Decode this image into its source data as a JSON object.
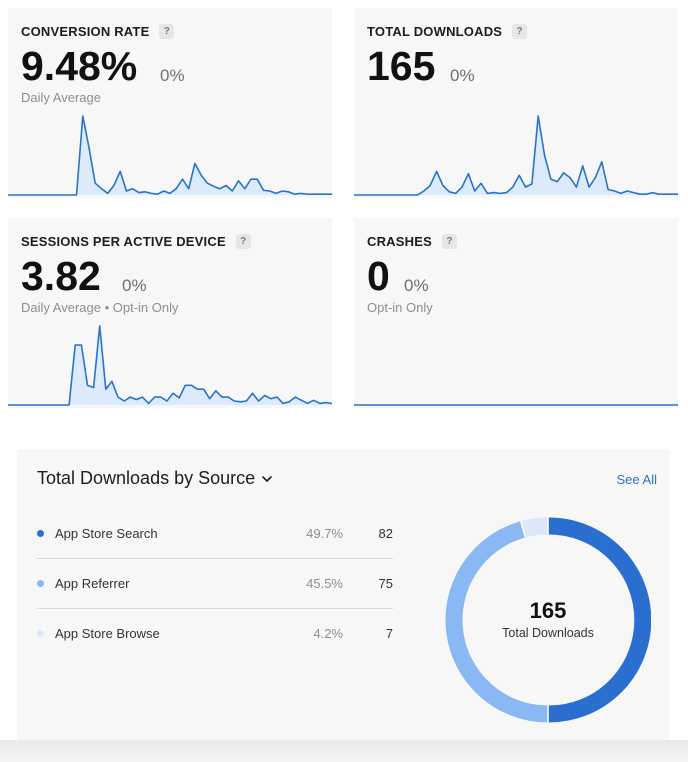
{
  "metrics": [
    {
      "title": "CONVERSION RATE",
      "help": "?",
      "value": "9.48%",
      "change": "0%",
      "subtitle": "Daily Average",
      "sparkline": [
        0,
        0,
        0,
        0,
        0,
        0,
        0,
        0,
        0,
        0,
        0,
        0,
        1.0,
        0.6,
        0.15,
        0.08,
        0.02,
        0.12,
        0.3,
        0.05,
        0.08,
        0.03,
        0.04,
        0.02,
        0.01,
        0.05,
        0.02,
        0.08,
        0.2,
        0.08,
        0.4,
        0.25,
        0.15,
        0.11,
        0.08,
        0.12,
        0.05,
        0.18,
        0.08,
        0.2,
        0.2,
        0.06,
        0.05,
        0.02,
        0.05,
        0.04,
        0.01,
        0.02,
        0.01,
        0.01,
        0.01,
        0.01,
        0.01
      ]
    },
    {
      "title": "TOTAL DOWNLOADS",
      "help": "?",
      "value": "165",
      "change": "0%",
      "subtitle": "",
      "sparkline": [
        0,
        0,
        0,
        0,
        0,
        0,
        0,
        0,
        0,
        0,
        0,
        0.05,
        0.12,
        0.3,
        0.12,
        0.04,
        0.02,
        0.1,
        0.27,
        0.05,
        0.15,
        0.02,
        0.03,
        0.02,
        0.03,
        0.1,
        0.25,
        0.1,
        0.14,
        1.0,
        0.5,
        0.2,
        0.17,
        0.28,
        0.22,
        0.1,
        0.37,
        0.1,
        0.22,
        0.42,
        0.07,
        0.05,
        0.02,
        0.05,
        0.03,
        0.01,
        0.01,
        0.03,
        0.01,
        0.01,
        0.01,
        0.01
      ]
    },
    {
      "title": "SESSIONS PER ACTIVE DEVICE",
      "help": "?",
      "value": "3.82",
      "change": "0%",
      "subtitle": "Daily Average • Opt-in Only",
      "sparkline": [
        0,
        0,
        0,
        0,
        0,
        0,
        0,
        0,
        0,
        0,
        0,
        0.76,
        0.76,
        0.25,
        0.22,
        1.0,
        0.2,
        0.3,
        0.1,
        0.05,
        0.1,
        0.07,
        0.1,
        0.02,
        0.1,
        0.1,
        0.05,
        0.15,
        0.09,
        0.25,
        0.25,
        0.2,
        0.2,
        0.08,
        0.18,
        0.1,
        0.1,
        0.05,
        0.04,
        0.05,
        0.15,
        0.05,
        0.12,
        0.08,
        0.1,
        0.02,
        0.04,
        0.1,
        0.06,
        0.02,
        0.06,
        0.02,
        0.03,
        0.02
      ]
    },
    {
      "title": "CRASHES",
      "help": "?",
      "value": "0",
      "change": "0%",
      "subtitle": "Opt-in Only",
      "sparkline": [
        0,
        0,
        0,
        0,
        0,
        0,
        0,
        0,
        0,
        0,
        0,
        0,
        0,
        0,
        0,
        0,
        0,
        0,
        0,
        0,
        0,
        0,
        0,
        0,
        0,
        0,
        0,
        0,
        0,
        0,
        0,
        0,
        0,
        0,
        0,
        0,
        0,
        0,
        0,
        0,
        0,
        0,
        0,
        0,
        0,
        0,
        0,
        0,
        0,
        0,
        0,
        0
      ]
    }
  ],
  "sources": {
    "title": "Total Downloads by Source",
    "see_all": "See All",
    "rows": [
      {
        "label": "App Store Search",
        "percent": "49.7%",
        "count": "82",
        "color": "#2a6fd0"
      },
      {
        "label": "App Referrer",
        "percent": "45.5%",
        "count": "75",
        "color": "#8ab8f4"
      },
      {
        "label": "App Store Browse",
        "percent": "4.2%",
        "count": "7",
        "color": "#dce8fa"
      }
    ],
    "donut": {
      "total": "165",
      "label": "Total Downloads",
      "segments": [
        82,
        75,
        7
      ]
    }
  },
  "colors": {
    "line": "#2a73c9",
    "fill": "#dcebfb"
  }
}
